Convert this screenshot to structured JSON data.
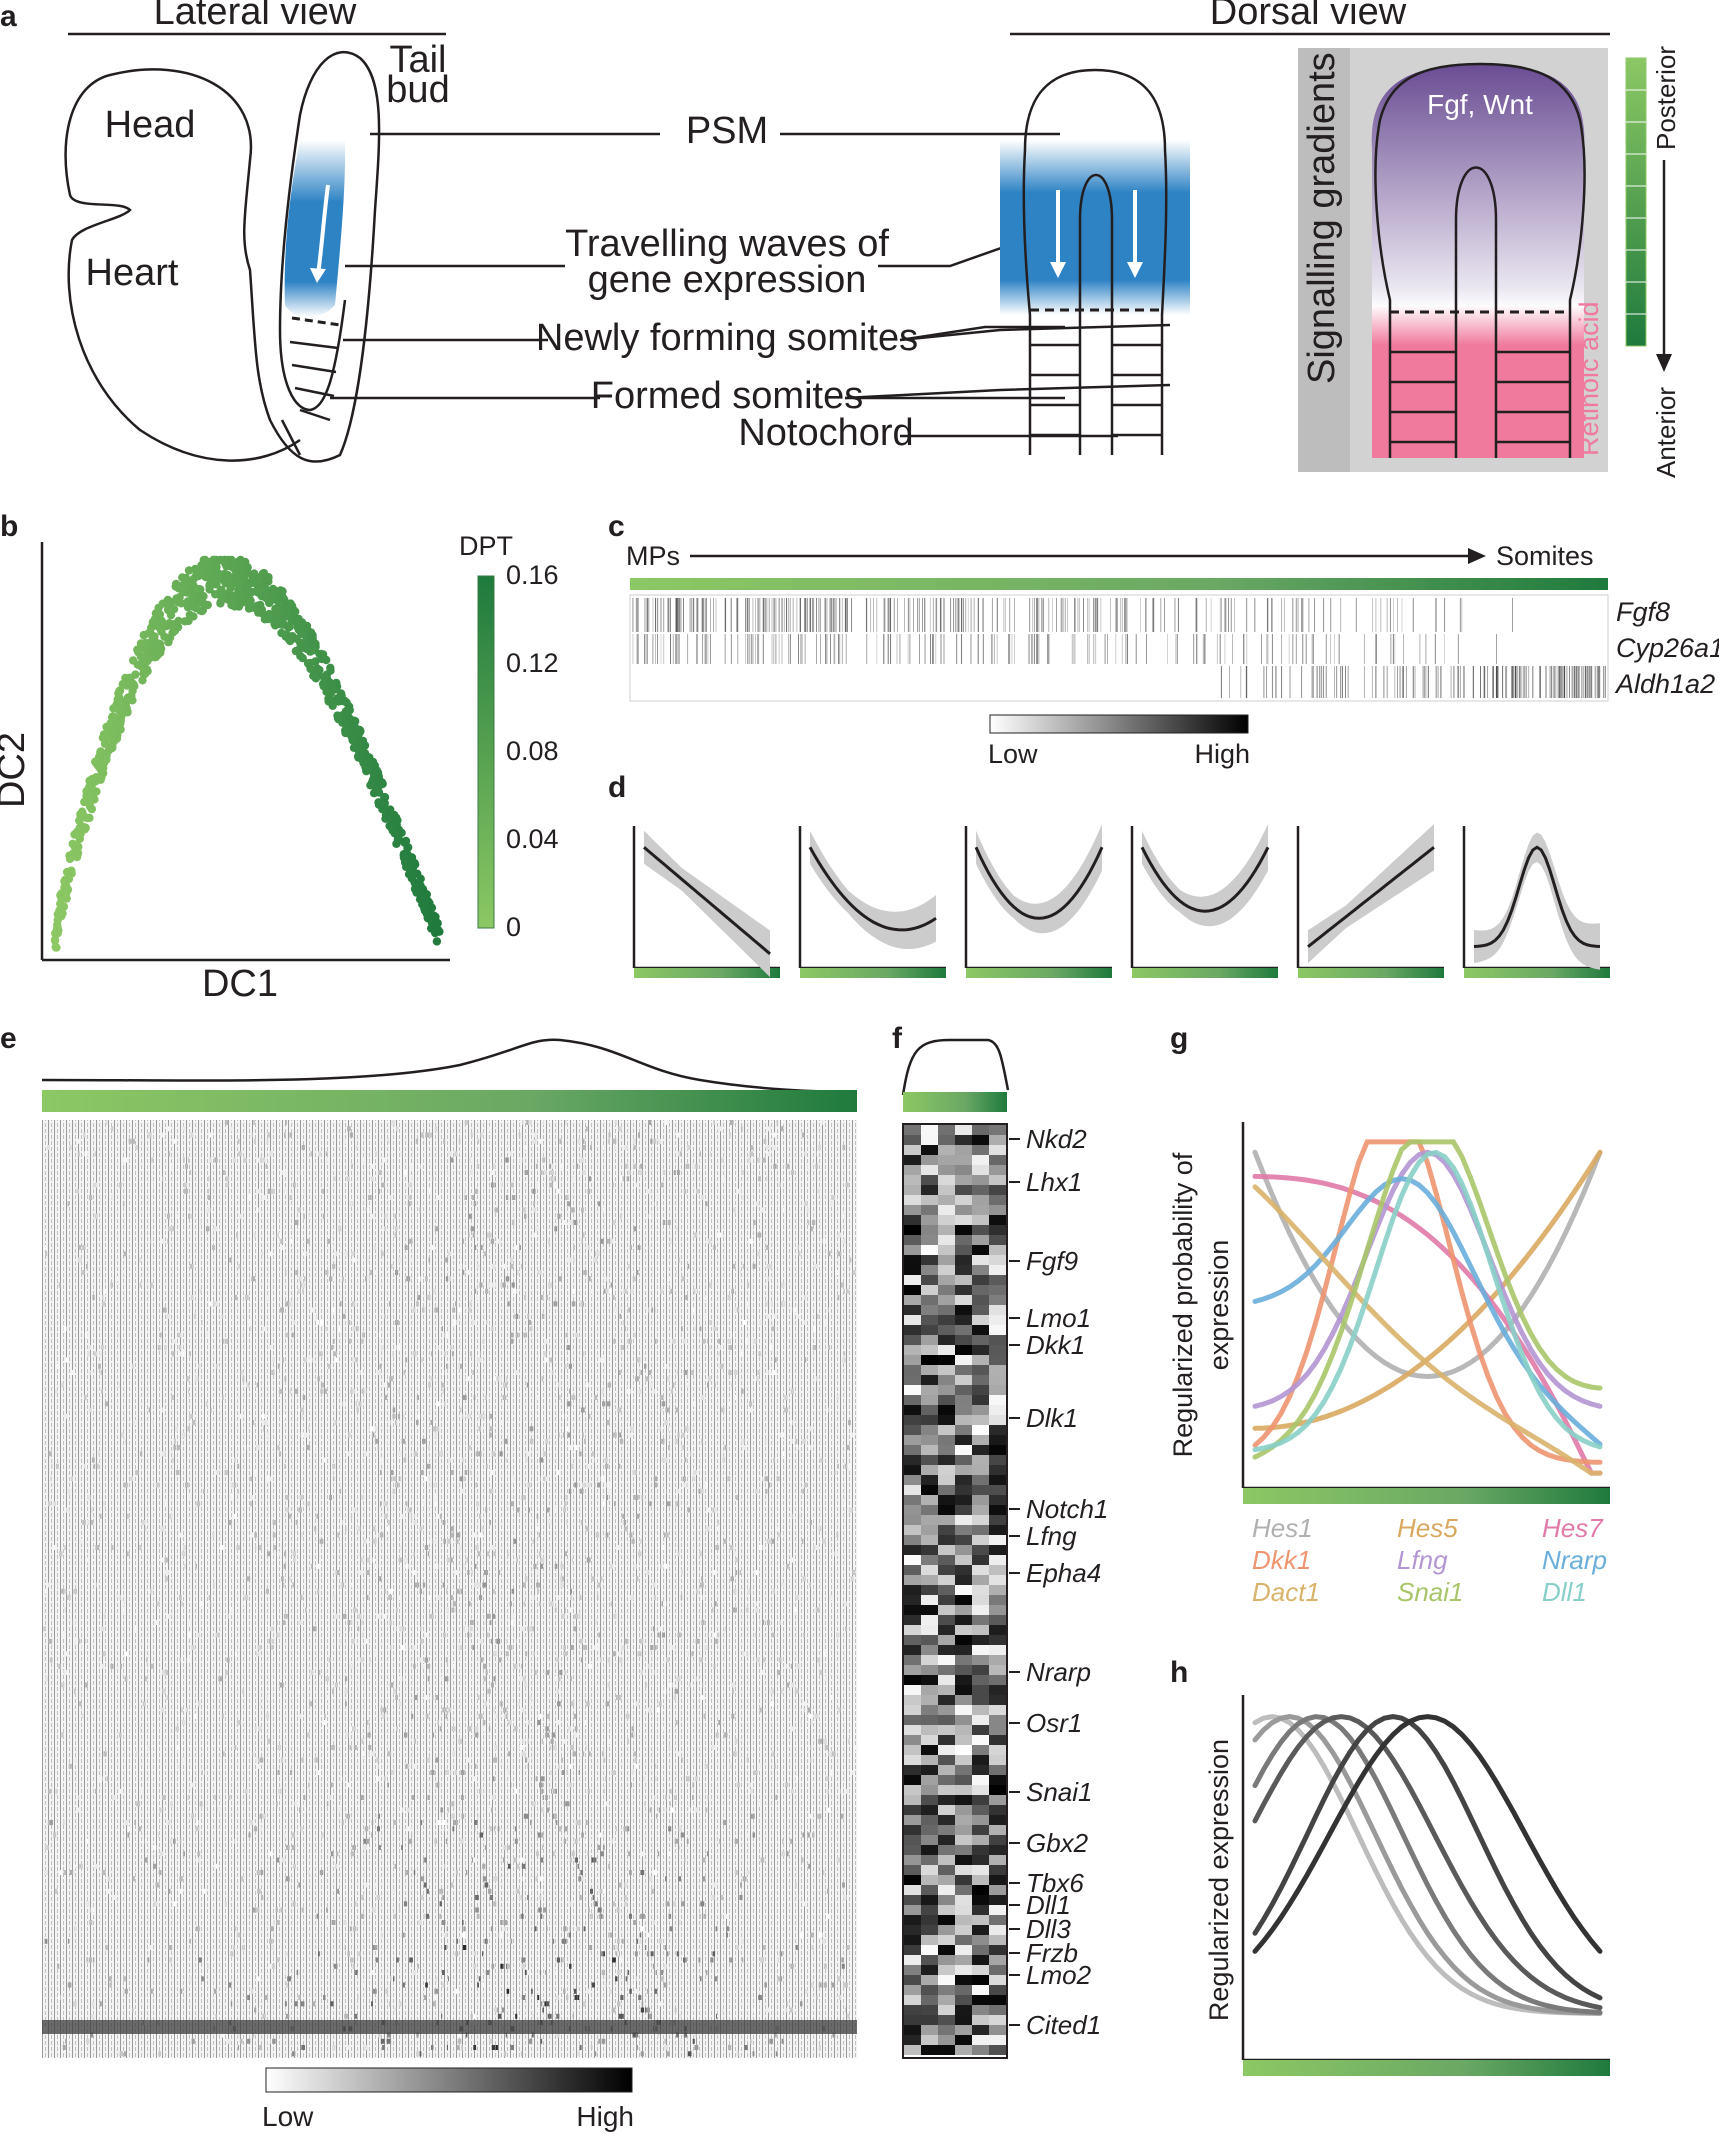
{
  "panel_labels": {
    "a": "a",
    "b": "b",
    "c": "c",
    "d": "d",
    "e": "e",
    "f": "f",
    "g": "g",
    "h": "h"
  },
  "panel_a": {
    "lateral_view": "Lateral view",
    "dorsal_view": "Dorsal view",
    "head": "Head",
    "heart": "Heart",
    "tail_bud_1": "Tail",
    "tail_bud_2": "bud",
    "psm": "PSM",
    "travelling_1": "Travelling waves of",
    "travelling_2": "gene expression",
    "newly_forming": "Newly forming somites",
    "formed": "Formed somites",
    "notochord": "Notochord",
    "signalling": "Signalling gradients",
    "fgf_wnt": "Fgf, Wnt",
    "retinoic": "Retinoic acid",
    "posterior": "Posterior",
    "anterior": "Anterior"
  },
  "panel_b": {
    "xlabel": "DC1",
    "ylabel": "DC2",
    "colorbar_title": "DPT",
    "colorbar_ticks": [
      "0.16",
      "0.12",
      "0.08",
      "0.04",
      "0"
    ]
  },
  "panel_c": {
    "start": "MPs",
    "end": "Somites",
    "genes": [
      "Fgf8",
      "Cyp26a1",
      "Aldh1a2"
    ],
    "low": "Low",
    "high": "High"
  },
  "panel_e": {
    "low": "Low",
    "high": "High"
  },
  "panel_f": {
    "genes": [
      "Nkd2",
      "Lhx1",
      "Fgf9",
      "Lmo1",
      "Dkk1",
      "Dlk1",
      "Notch1",
      "Lfng",
      "Epha4",
      "Nrarp",
      "Osr1",
      "Snai1",
      "Gbx2",
      "Tbx6",
      "Dll1",
      "Dll3",
      "Frzb",
      "Lmo2",
      "Cited1"
    ]
  },
  "panel_g": {
    "ylabel_1": "Regularized probability of",
    "ylabel_2": "expression",
    "legend": [
      {
        "name": "Hes1",
        "color": "#b0b0b0"
      },
      {
        "name": "Hes5",
        "color": "#d9a85f"
      },
      {
        "name": "Hes7",
        "color": "#e07aa8"
      },
      {
        "name": "Dkk1",
        "color": "#ee9570"
      },
      {
        "name": "Lfng",
        "color": "#b396d3"
      },
      {
        "name": "Nrarp",
        "color": "#6aaedb"
      },
      {
        "name": "Dact1",
        "color": "#d9b36b"
      },
      {
        "name": "Snai1",
        "color": "#a9c56a"
      },
      {
        "name": "Dll1",
        "color": "#88cfc8"
      }
    ]
  },
  "panel_h": {
    "ylabel": "Regularized expression"
  },
  "colors": {
    "green_light": "#8cc864",
    "green_dark": "#1f7a3d",
    "blue": "#2e83c5",
    "purple": "#6a4c93",
    "pink": "#ef7a9d",
    "gray_box": "#d2d2d2"
  }
}
